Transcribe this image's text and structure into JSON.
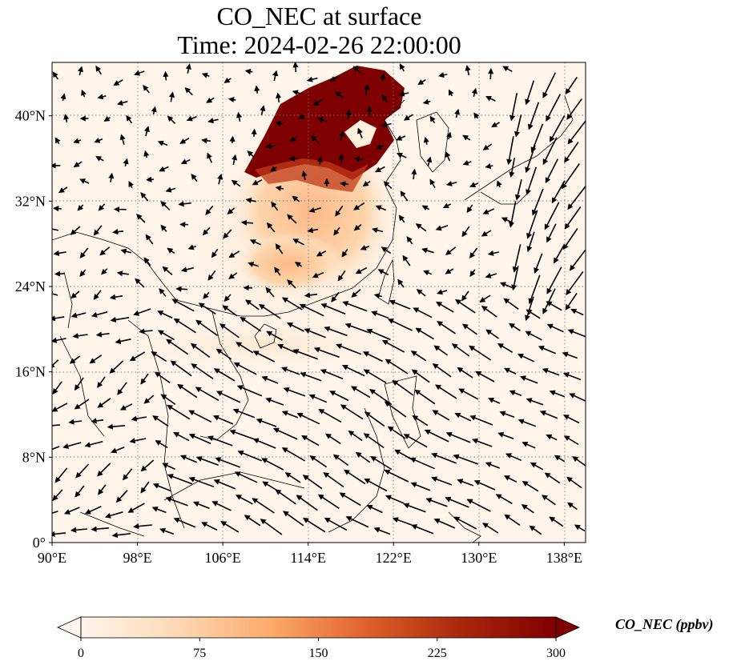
{
  "title": {
    "line1": "CO_NEC at surface",
    "line2": "Time: 2024-02-26 22:00:00"
  },
  "map": {
    "lon_range": [
      90,
      140
    ],
    "lat_range": [
      0,
      45
    ],
    "lon_ticks": [
      90,
      98,
      106,
      114,
      122,
      130,
      138
    ],
    "lon_tick_labels": [
      "90°E",
      "98°E",
      "106°E",
      "114°E",
      "122°E",
      "130°E",
      "138°E"
    ],
    "lat_ticks": [
      0,
      8,
      16,
      24,
      32,
      40
    ],
    "lat_tick_labels": [
      "0°",
      "8°N",
      "16°N",
      "24°N",
      "32°N",
      "40°N"
    ],
    "grid": "dotted",
    "background_color": "#fff5eb",
    "coastline_color": "#000000",
    "wind_vector_color": "#000000"
  },
  "colorbar": {
    "ticks": [
      0,
      75,
      150,
      225,
      300
    ],
    "tick_labels": [
      "0",
      "75",
      "150",
      "225",
      "300"
    ],
    "range": [
      0,
      300
    ],
    "label": "CO_NEC (ppbv)",
    "colormap": "OrRd",
    "colors": [
      "#fff5eb",
      "#fdd9b4",
      "#fdaa6a",
      "#e1612c",
      "#a8270a",
      "#7f0000"
    ],
    "extend": "both"
  }
}
